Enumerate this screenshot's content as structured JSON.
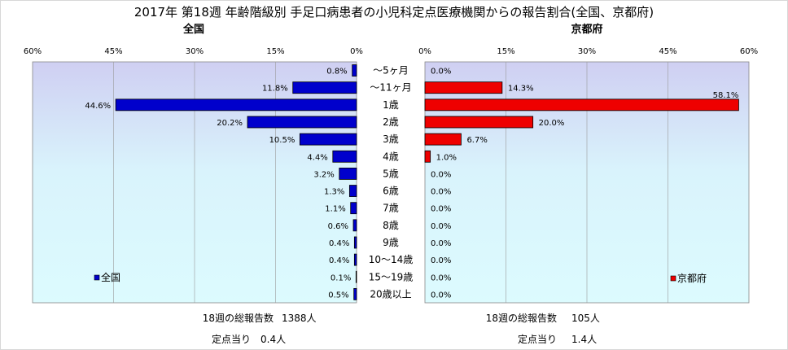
{
  "title": "2017年 第18週 年齢階級別 手足口病患者の小児科定点医療機関からの報告割合(全国、京都府)",
  "categories": [
    "～5ヶ月",
    "～11ヶ月",
    "1歳",
    "2歳",
    "3歳",
    "4歳",
    "5歳",
    "6歳",
    "7歳",
    "8歳",
    "9歳",
    "10～14歳",
    "15～19歳",
    "20歳以上"
  ],
  "chart_data": [
    {
      "type": "bar",
      "title": "全国",
      "orientation": "horizontal",
      "direction": "right-to-left",
      "categories": [
        "～5ヶ月",
        "～11ヶ月",
        "1歳",
        "2歳",
        "3歳",
        "4歳",
        "5歳",
        "6歳",
        "7歳",
        "8歳",
        "9歳",
        "10～14歳",
        "15～19歳",
        "20歳以上"
      ],
      "series": [
        {
          "name": "全国",
          "color": "#0000cc",
          "values": [
            0.8,
            11.8,
            44.6,
            20.2,
            10.5,
            4.4,
            3.2,
            1.3,
            1.1,
            0.6,
            0.4,
            0.4,
            0.1,
            0.5
          ]
        }
      ],
      "data_labels": [
        "0.8%",
        "11.8%",
        "44.6%",
        "20.2%",
        "10.5%",
        "4.4%",
        "3.2%",
        "1.3%",
        "1.1%",
        "0.6%",
        "0.4%",
        "0.4%",
        "0.1%",
        "0.5%"
      ],
      "xlim": [
        0,
        60
      ],
      "xticks": [
        "60%",
        "45%",
        "30%",
        "15%",
        "0%"
      ],
      "grid": true,
      "legend_position": "bottom-left"
    },
    {
      "type": "bar",
      "title": "京都府",
      "orientation": "horizontal",
      "direction": "left-to-right",
      "categories": [
        "～5ヶ月",
        "～11ヶ月",
        "1歳",
        "2歳",
        "3歳",
        "4歳",
        "5歳",
        "6歳",
        "7歳",
        "8歳",
        "9歳",
        "10～14歳",
        "15～19歳",
        "20歳以上"
      ],
      "series": [
        {
          "name": "京都府",
          "color": "#ee0000",
          "values": [
            0.0,
            14.3,
            58.1,
            20.0,
            6.7,
            1.0,
            0.0,
            0.0,
            0.0,
            0.0,
            0.0,
            0.0,
            0.0,
            0.0
          ]
        }
      ],
      "data_labels": [
        "0.0%",
        "14.3%",
        "58.1%",
        "20.0%",
        "6.7%",
        "1.0%",
        "0.0%",
        "0.0%",
        "0.0%",
        "0.0%",
        "0.0%",
        "0.0%",
        "0.0%",
        "0.0%"
      ],
      "xlim": [
        0,
        60
      ],
      "xticks": [
        "0%",
        "15%",
        "30%",
        "45%",
        "60%"
      ],
      "grid": true,
      "legend_position": "bottom-right"
    }
  ],
  "footer": {
    "national": {
      "total_label": "18週の総報告数",
      "total_value": "1388人",
      "per_label": "定点当り",
      "per_value": "0.4人"
    },
    "kyoto": {
      "total_label": "18週の総報告数",
      "total_value": "105人",
      "per_label": "定点当り",
      "per_value": "1.4人"
    }
  }
}
